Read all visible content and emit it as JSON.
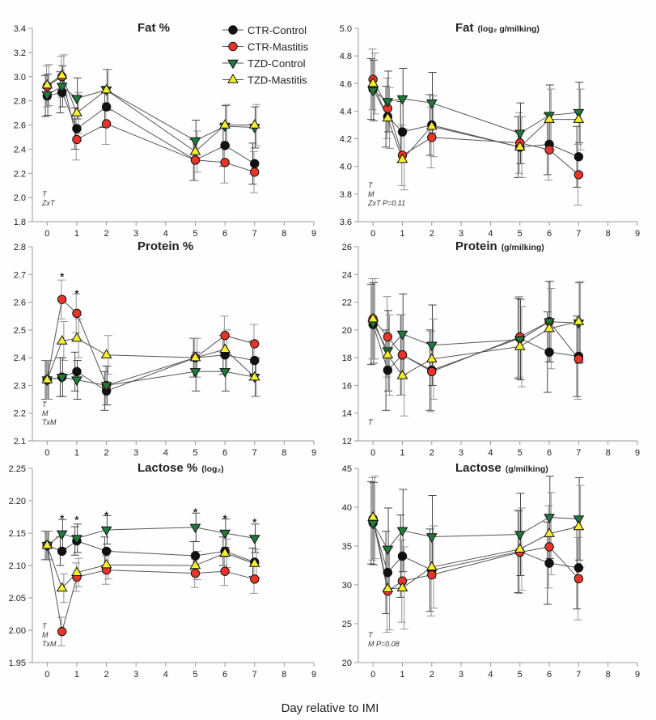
{
  "figure": {
    "xlabel": "Day relative to IMI"
  },
  "colors": {
    "CTR-Control": "#111111",
    "CTR-Mastitis": "#e8352a",
    "TZD-Control": "#1f7a3c",
    "TZD-Mastitis": "#f5ef2c"
  },
  "chart_data": [
    {
      "type": "line",
      "title": "Fat %",
      "title_suffix": "",
      "x": [
        0,
        0.5,
        1,
        2,
        5,
        6,
        7
      ],
      "xticks": [
        0,
        1,
        2,
        3,
        4,
        5,
        6,
        7,
        8,
        9
      ],
      "xlim": [
        -0.5,
        9
      ],
      "ylim": [
        1.8,
        3.4
      ],
      "yticks": [
        "1.8",
        "2.0",
        "2.2",
        "2.4",
        "2.6",
        "2.8",
        "3.0",
        "3.2",
        "3.4"
      ],
      "stats": [
        "T",
        "ZxT"
      ],
      "stars": [],
      "legend": {
        "position": "top",
        "entries": [
          "CTR-Control",
          "CTR-Mastitis",
          "TZD-Control",
          "TZD-Mastitis"
        ]
      },
      "series": [
        {
          "name": "CTR-Control",
          "marker": "circle",
          "values": [
            2.84,
            2.87,
            2.57,
            2.75,
            2.31,
            2.43,
            2.28
          ],
          "err": [
            0.17,
            0.17,
            0.17,
            0.17,
            0.17,
            0.17,
            0.17
          ]
        },
        {
          "name": "CTR-Mastitis",
          "marker": "circle",
          "values": [
            2.92,
            3.0,
            2.48,
            2.61,
            2.31,
            2.29,
            2.21
          ],
          "err": [
            0.17,
            0.17,
            0.17,
            0.17,
            0.17,
            0.17,
            0.17
          ]
        },
        {
          "name": "TZD-Control",
          "marker": "triangle-down",
          "values": [
            2.85,
            2.92,
            2.82,
            2.89,
            2.47,
            2.59,
            2.58
          ],
          "err": [
            0.17,
            0.17,
            0.17,
            0.17,
            0.17,
            0.17,
            0.17
          ]
        },
        {
          "name": "TZD-Mastitis",
          "marker": "triangle-up",
          "values": [
            2.93,
            3.01,
            2.7,
            2.89,
            2.38,
            2.6,
            2.6
          ],
          "err": [
            0.17,
            0.17,
            0.17,
            0.17,
            0.17,
            0.17,
            0.17
          ]
        }
      ]
    },
    {
      "type": "line",
      "title": "Fat",
      "title_suffix": "(log₂ g/milking)",
      "x": [
        0,
        0.5,
        1,
        2,
        5,
        6,
        7
      ],
      "xticks": [
        0,
        1,
        2,
        3,
        4,
        5,
        6,
        7,
        8,
        9
      ],
      "xlim": [
        -0.5,
        9
      ],
      "ylim": [
        3.6,
        5.0
      ],
      "yticks": [
        "3.6",
        "3.8",
        "4.0",
        "4.2",
        "4.4",
        "4.6",
        "4.8",
        "5.0"
      ],
      "stats": [
        "T",
        "M",
        "ZxT P=0.11"
      ],
      "stars": [],
      "series": [
        {
          "name": "CTR-Control",
          "marker": "circle",
          "values": [
            4.56,
            4.36,
            4.25,
            4.3,
            4.14,
            4.16,
            4.07
          ],
          "err": [
            0.22,
            0.22,
            0.22,
            0.22,
            0.22,
            0.22,
            0.22
          ]
        },
        {
          "name": "CTR-Mastitis",
          "marker": "circle",
          "values": [
            4.63,
            4.42,
            4.08,
            4.21,
            4.17,
            4.12,
            3.94
          ],
          "err": [
            0.22,
            0.22,
            0.22,
            0.22,
            0.22,
            0.22,
            0.22
          ]
        },
        {
          "name": "TZD-Control",
          "marker": "triangle-down",
          "values": [
            4.55,
            4.47,
            4.49,
            4.46,
            4.24,
            4.37,
            4.39
          ],
          "err": [
            0.22,
            0.22,
            0.22,
            0.22,
            0.22,
            0.22,
            0.22
          ]
        },
        {
          "name": "TZD-Mastitis",
          "marker": "triangle-up",
          "values": [
            4.6,
            4.35,
            4.05,
            4.29,
            4.14,
            4.34,
            4.34
          ],
          "err": [
            0.22,
            0.22,
            0.22,
            0.22,
            0.22,
            0.22,
            0.22
          ]
        }
      ]
    },
    {
      "type": "line",
      "title": "Protein %",
      "title_suffix": "",
      "x": [
        0,
        0.5,
        1,
        2,
        5,
        6,
        7
      ],
      "xticks": [
        0,
        1,
        2,
        3,
        4,
        5,
        6,
        7,
        8,
        9
      ],
      "xlim": [
        -0.5,
        9
      ],
      "ylim": [
        2.1,
        2.8
      ],
      "yticks": [
        "2.1",
        "2.2",
        "2.3",
        "2.4",
        "2.5",
        "2.6",
        "2.7",
        "2.8"
      ],
      "stats": [
        "T",
        "M",
        "TxM"
      ],
      "stars": [
        {
          "x": 0.5,
          "y": 2.69,
          "text": "*"
        },
        {
          "x": 1,
          "y": 2.63,
          "text": "*"
        }
      ],
      "series": [
        {
          "name": "CTR-Control",
          "marker": "circle",
          "values": [
            2.32,
            2.33,
            2.35,
            2.28,
            2.4,
            2.41,
            2.39
          ],
          "err": [
            0.07,
            0.07,
            0.07,
            0.07,
            0.07,
            0.07,
            0.07
          ]
        },
        {
          "name": "CTR-Mastitis",
          "marker": "circle",
          "values": [
            2.32,
            2.61,
            2.56,
            2.3,
            2.4,
            2.48,
            2.45
          ],
          "err": [
            0.07,
            0.07,
            0.07,
            0.07,
            0.07,
            0.07,
            0.07
          ]
        },
        {
          "name": "TZD-Control",
          "marker": "triangle-down",
          "values": [
            2.32,
            2.33,
            2.32,
            2.3,
            2.35,
            2.35,
            2.33
          ],
          "err": [
            0.07,
            0.07,
            0.07,
            0.07,
            0.07,
            0.07,
            0.07
          ]
        },
        {
          "name": "TZD-Mastitis",
          "marker": "triangle-up",
          "values": [
            2.32,
            2.46,
            2.47,
            2.41,
            2.4,
            2.43,
            2.33
          ],
          "err": [
            0.07,
            0.07,
            0.07,
            0.07,
            0.07,
            0.07,
            0.07
          ]
        }
      ]
    },
    {
      "type": "line",
      "title": "Protein",
      "title_suffix": "(g/milking)",
      "x": [
        0,
        0.5,
        1,
        2,
        5,
        6,
        7
      ],
      "xticks": [
        0,
        1,
        2,
        3,
        4,
        5,
        6,
        7,
        8,
        9
      ],
      "xlim": [
        -0.5,
        9
      ],
      "ylim": [
        12,
        26
      ],
      "yticks": [
        "12",
        "14",
        "16",
        "18",
        "20",
        "22",
        "24",
        "26"
      ],
      "stats": [
        "T"
      ],
      "stars": [],
      "series": [
        {
          "name": "CTR-Control",
          "marker": "circle",
          "values": [
            20.4,
            17.1,
            18.2,
            17.1,
            19.4,
            18.4,
            18.1
          ],
          "err": [
            2.9,
            2.9,
            2.9,
            2.9,
            2.9,
            2.9,
            2.9
          ]
        },
        {
          "name": "CTR-Mastitis",
          "marker": "circle",
          "values": [
            20.8,
            19.5,
            18.2,
            17.0,
            19.5,
            20.6,
            17.9
          ],
          "err": [
            2.9,
            2.9,
            2.9,
            2.9,
            2.9,
            2.9,
            2.9
          ]
        },
        {
          "name": "TZD-Control",
          "marker": "triangle-down",
          "values": [
            20.5,
            18.5,
            19.7,
            18.9,
            19.3,
            20.6,
            20.5
          ],
          "err": [
            2.9,
            2.9,
            2.9,
            2.9,
            2.9,
            2.9,
            2.9
          ]
        },
        {
          "name": "TZD-Mastitis",
          "marker": "triangle-up",
          "values": [
            20.8,
            18.2,
            16.7,
            17.9,
            18.8,
            20.1,
            20.6
          ],
          "err": [
            2.9,
            2.9,
            2.9,
            2.9,
            2.9,
            2.9,
            2.9
          ]
        }
      ]
    },
    {
      "type": "line",
      "title": "Lactose %",
      "title_suffix": "(log₂)",
      "x": [
        0,
        0.5,
        1,
        2,
        5,
        6,
        7
      ],
      "xticks": [
        0,
        1,
        2,
        3,
        4,
        5,
        6,
        7,
        8,
        9
      ],
      "xlim": [
        -0.5,
        9
      ],
      "ylim": [
        1.95,
        2.25
      ],
      "yticks": [
        "1.95",
        "2.00",
        "2.05",
        "2.10",
        "2.15",
        "2.20",
        "2.25"
      ],
      "stats": [
        "T",
        "M",
        "TxM"
      ],
      "stars": [
        {
          "x": 0.5,
          "y": 2.172,
          "text": "*"
        },
        {
          "x": 1,
          "y": 2.17,
          "text": "*"
        },
        {
          "x": 2,
          "y": 2.177,
          "text": "*"
        },
        {
          "x": 5,
          "y": 2.182,
          "text": "*"
        },
        {
          "x": 6,
          "y": 2.172,
          "text": "*"
        },
        {
          "x": 7,
          "y": 2.166,
          "text": "*"
        }
      ],
      "series": [
        {
          "name": "CTR-Control",
          "marker": "circle",
          "values": [
            2.131,
            2.122,
            2.138,
            2.122,
            2.115,
            2.122,
            2.105
          ],
          "err": [
            0.022,
            0.022,
            0.022,
            0.022,
            0.022,
            0.022,
            0.022
          ]
        },
        {
          "name": "CTR-Mastitis",
          "marker": "circle",
          "values": [
            2.131,
            1.998,
            2.082,
            2.093,
            2.088,
            2.091,
            2.079
          ],
          "err": [
            0.022,
            0.022,
            0.022,
            0.022,
            0.022,
            0.022,
            0.022
          ]
        },
        {
          "name": "TZD-Control",
          "marker": "triangle-down",
          "values": [
            2.131,
            2.149,
            2.142,
            2.155,
            2.159,
            2.15,
            2.142
          ],
          "err": [
            0.022,
            0.022,
            0.022,
            0.022,
            0.022,
            0.022,
            0.022
          ]
        },
        {
          "name": "TZD-Mastitis",
          "marker": "triangle-up",
          "values": [
            2.131,
            2.065,
            2.089,
            2.101,
            2.1,
            2.119,
            2.103
          ],
          "err": [
            0.022,
            0.022,
            0.022,
            0.022,
            0.022,
            0.022,
            0.022
          ]
        }
      ]
    },
    {
      "type": "line",
      "title": "Lactose",
      "title_suffix": "(g/milking)",
      "x": [
        0,
        0.5,
        1,
        2,
        5,
        6,
        7
      ],
      "xticks": [
        0,
        1,
        2,
        3,
        4,
        5,
        6,
        7,
        8,
        9
      ],
      "xlim": [
        -0.5,
        9
      ],
      "ylim": [
        20,
        45
      ],
      "yticks": [
        "20",
        "25",
        "30",
        "35",
        "40",
        "45"
      ],
      "stats": [
        "T",
        "M P=0.08"
      ],
      "stars": [],
      "series": [
        {
          "name": "CTR-Control",
          "marker": "circle",
          "values": [
            38.0,
            31.6,
            33.7,
            31.9,
            34.3,
            32.8,
            32.2
          ],
          "err": [
            5.3,
            5.3,
            5.3,
            5.3,
            5.3,
            5.3,
            5.3
          ]
        },
        {
          "name": "CTR-Mastitis",
          "marker": "circle",
          "values": [
            38.5,
            29.2,
            30.5,
            31.3,
            34.2,
            34.9,
            30.8
          ],
          "err": [
            5.3,
            5.3,
            5.3,
            5.3,
            5.3,
            5.3,
            5.3
          ]
        },
        {
          "name": "TZD-Control",
          "marker": "triangle-down",
          "values": [
            37.9,
            34.6,
            37.0,
            36.2,
            36.5,
            38.7,
            38.5
          ],
          "err": [
            5.3,
            5.3,
            5.3,
            5.3,
            5.3,
            5.3,
            5.3
          ]
        },
        {
          "name": "TZD-Mastitis",
          "marker": "triangle-up",
          "values": [
            38.7,
            29.5,
            29.6,
            32.3,
            34.6,
            36.6,
            37.5
          ],
          "err": [
            5.3,
            5.3,
            5.3,
            5.3,
            5.3,
            5.3,
            5.3
          ]
        }
      ]
    }
  ]
}
